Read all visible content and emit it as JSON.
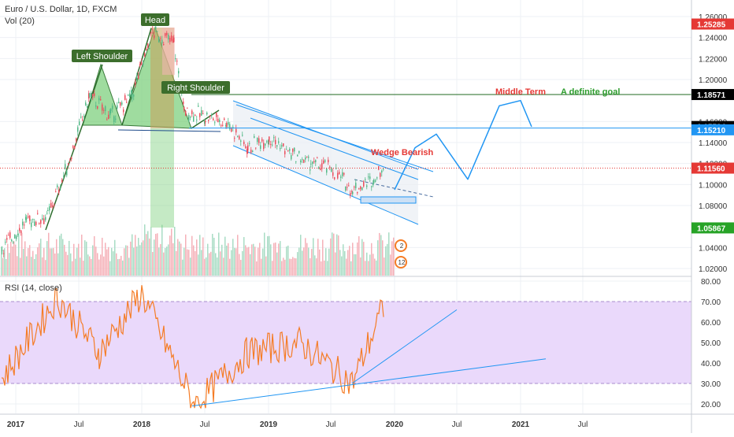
{
  "header": {
    "title": "Euro / U.S. Dollar, 1D, FXCM",
    "volume_label": "Vol (20)",
    "rsi_label": "RSI (14, close)"
  },
  "colors": {
    "up": "#53b987",
    "down": "#eb4d5c",
    "rsi_line": "#f57c25",
    "rsi_band": "#ead9fb",
    "annotation_line": "#2196f3",
    "pattern_fill": "#7fd07f",
    "label_bg": "#3c6e2c",
    "red_text": "#e53935",
    "green_text": "#2e9d2e",
    "price_red": "#e53935",
    "price_dark": "#000000",
    "price_green": "#27a327",
    "price_blue": "#2196f3"
  },
  "annotations": {
    "left_shoulder": "Left Shoulder",
    "head": "Head",
    "right_shoulder": "Right Shoulder",
    "middle_term": "Middle Term",
    "definite_goal": "A definite goal",
    "wedge_bearish": "Wedge Bearish"
  },
  "price_axis": {
    "ticks": [
      "1.26000",
      "1.24000",
      "1.22000",
      "1.20000",
      "1.16000",
      "1.14000",
      "1.12000",
      "1.10000",
      "1.08000",
      "1.04000",
      "1.02000"
    ],
    "tick_values": [
      1.26,
      1.24,
      1.22,
      1.2,
      1.16,
      1.14,
      1.12,
      1.1,
      1.08,
      1.04,
      1.02
    ],
    "badges": [
      {
        "label": "1.25285",
        "value": 1.25285,
        "color": "price_red"
      },
      {
        "label": "1.18571",
        "value": 1.18571,
        "color": "price_dark"
      },
      {
        "label": "1.15524",
        "value": 1.15524,
        "color": "price_dark"
      },
      {
        "label": "1.15210",
        "value": 1.1521,
        "color": "price_blue"
      },
      {
        "label": "1.11560",
        "value": 1.1156,
        "color": "price_red"
      },
      {
        "label": "1.05867",
        "value": 1.05867,
        "color": "price_green"
      }
    ]
  },
  "rsi_axis": {
    "ticks": [
      "80.00",
      "70.00",
      "60.00",
      "50.00",
      "40.00",
      "30.00",
      "20.00"
    ],
    "tick_values": [
      80,
      70,
      60,
      50,
      40,
      30,
      20
    ],
    "band": [
      30,
      70
    ]
  },
  "time_axis": {
    "labels": [
      "2017",
      "Jul",
      "2018",
      "Jul",
      "2019",
      "Jul",
      "2020",
      "Jul",
      "2021",
      "Jul"
    ],
    "bold": [
      "2017",
      "2018",
      "2019",
      "2020",
      "2021"
    ]
  },
  "event_badges": [
    "2",
    "12"
  ],
  "chart_data": {
    "type": "candlestick",
    "symbol": "Euro / U.S. Dollar, 1D, FXCM",
    "price_range": [
      1.01,
      1.265
    ],
    "rsi_range": [
      17,
      81
    ],
    "key_levels": [
      {
        "label": "1.25285",
        "value": 1.25285
      },
      {
        "label": "1.18571",
        "value": 1.18571
      },
      {
        "label": "1.15524",
        "value": 1.15524
      },
      {
        "label": "1.15210",
        "value": 1.1521
      },
      {
        "label": "1.11560",
        "value": 1.1156
      },
      {
        "label": "1.05867",
        "value": 1.05867
      }
    ],
    "price_path": [
      {
        "date": "2016-12",
        "close": 1.04
      },
      {
        "date": "2017-02",
        "close": 1.065
      },
      {
        "date": "2017-04",
        "close": 1.07
      },
      {
        "date": "2017-06",
        "close": 1.12
      },
      {
        "date": "2017-08",
        "close": 1.185
      },
      {
        "date": "2017-10",
        "close": 1.165
      },
      {
        "date": "2017-12",
        "close": 1.185
      },
      {
        "date": "2018-02",
        "close": 1.245
      },
      {
        "date": "2018-04",
        "close": 1.235
      },
      {
        "date": "2018-05",
        "close": 1.17
      },
      {
        "date": "2018-07",
        "close": 1.165
      },
      {
        "date": "2018-09",
        "close": 1.16
      },
      {
        "date": "2018-11",
        "close": 1.135
      },
      {
        "date": "2019-01",
        "close": 1.145
      },
      {
        "date": "2019-03",
        "close": 1.13
      },
      {
        "date": "2019-05",
        "close": 1.12
      },
      {
        "date": "2019-07",
        "close": 1.115
      },
      {
        "date": "2019-09",
        "close": 1.095
      },
      {
        "date": "2019-11",
        "close": 1.105
      },
      {
        "date": "2019-12",
        "close": 1.12
      }
    ],
    "rsi_path": [
      {
        "date": "2016-12",
        "value": 32
      },
      {
        "date": "2017-05",
        "value": 72
      },
      {
        "date": "2017-09",
        "value": 45
      },
      {
        "date": "2018-01",
        "value": 74
      },
      {
        "date": "2018-06",
        "value": 19
      },
      {
        "date": "2018-11",
        "value": 45
      },
      {
        "date": "2019-04",
        "value": 50
      },
      {
        "date": "2019-09",
        "value": 30
      },
      {
        "date": "2019-12",
        "value": 68
      }
    ],
    "projection": [
      {
        "date": "2020-01",
        "value": 1.095
      },
      {
        "date": "2020-03",
        "value": 1.135
      },
      {
        "date": "2020-05",
        "value": 1.148
      },
      {
        "date": "2020-08",
        "value": 1.105
      },
      {
        "date": "2020-11",
        "value": 1.175
      },
      {
        "date": "2021-01",
        "value": 1.18
      },
      {
        "date": "2021-02",
        "value": 1.155
      }
    ]
  }
}
